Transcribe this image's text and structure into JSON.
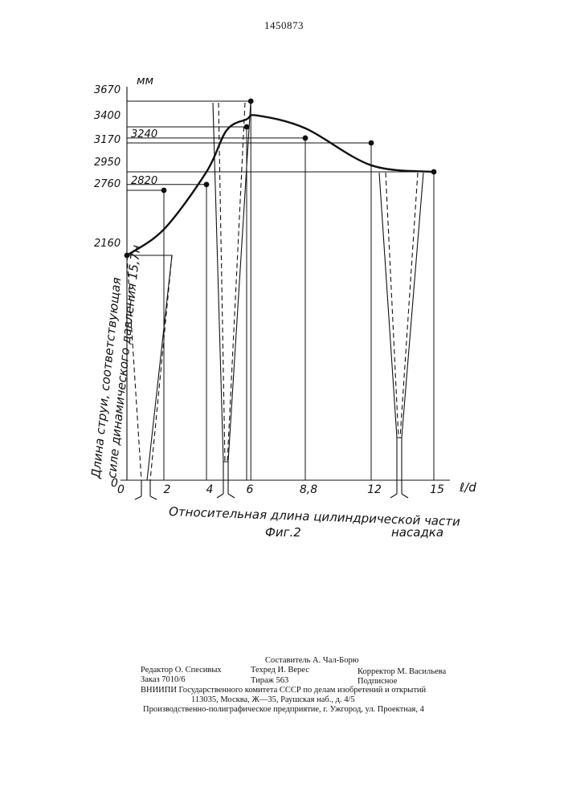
{
  "patent_number": "1450873",
  "chart_data": {
    "type": "line",
    "title": "",
    "figure_label": "Фиг.2",
    "xlabel": "Относительная длина цилиндрической части насадка",
    "xlabel_line1": "Относительная длина цилиндрической части",
    "xlabel_line2": "насадка",
    "x_unit": "ℓ/d",
    "ylabel": "Длина струи, соответствующая силе динамического давления 15,7н",
    "ylabel_line1": "Длина струи, соответствующая",
    "ylabel_line2": "силе динамического давления 15,7н",
    "y_unit": "мм",
    "x_ticks": [
      "0",
      "2",
      "4",
      "6",
      "8,8",
      "12",
      "15"
    ],
    "y_ticks": [
      "0",
      "2160",
      "2760",
      "2950",
      "3170",
      "3400",
      "3670"
    ],
    "point_labels": [
      "2820",
      "3240"
    ],
    "grid": false,
    "legend": "none",
    "series": [
      {
        "values_x": [
          0,
          2,
          4,
          5,
          6,
          6.5,
          8.8,
          12,
          15
        ],
        "values_y": [
          2160,
          2400,
          2950,
          3350,
          3480,
          3520,
          3380,
          3000,
          2950
        ]
      }
    ],
    "markers": [
      {
        "x": 0,
        "y": 2160
      },
      {
        "x": 2,
        "y": 2760
      },
      {
        "x": 4,
        "y": 2820
      },
      {
        "x": 6,
        "y": 3400
      },
      {
        "x": 6.2,
        "y": 3670
      },
      {
        "x": 8.8,
        "y": 3240
      },
      {
        "x": 12,
        "y": 3170
      },
      {
        "x": 15,
        "y": 2950
      }
    ]
  },
  "imprint": {
    "compiler": "Составитель А. Чал-Борю",
    "editor": "Редактор О. Спесивых",
    "techred": "Техред И. Верес",
    "corrector": "Корректор М. Васильева",
    "order": "Заказ 7010/6",
    "circulation": "Тираж 563",
    "subscription": "Подписное",
    "vniipi": "ВНИИПИ Государственного комитета СССР по делам изобретений и открытий",
    "address": "113035, Москва, Ж—35, Раушская наб., д. 4/5",
    "printing": "Производственно-полиграфическое предприятие, г. Ужгород, ул. Проектная, 4"
  }
}
